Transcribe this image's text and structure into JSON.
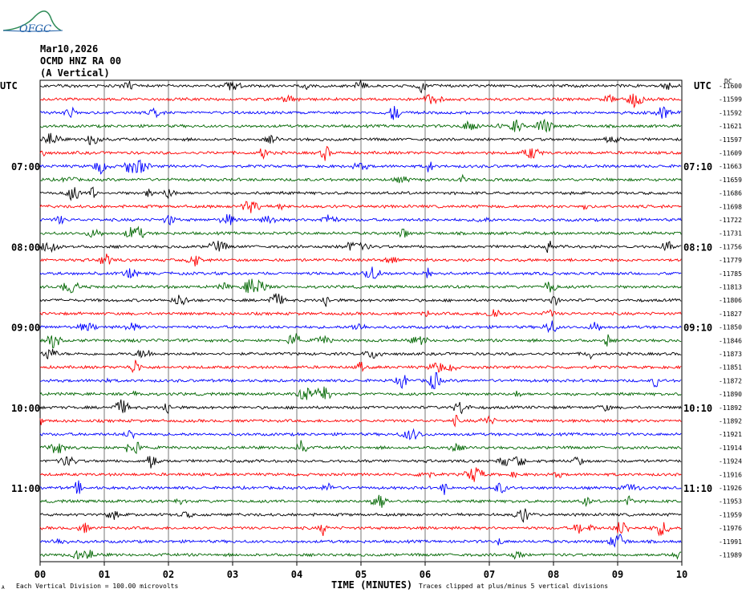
{
  "logo_text": "OFGC",
  "header": {
    "date": "Mar10,2026",
    "station": "OCMD HNZ RA 00",
    "component": "(A Vertical)"
  },
  "utc_label": "UTC",
  "dc_label": "DC",
  "footer": {
    "left_mark": "A",
    "scale_note": "Each Vertical Division =  100.00 microvolts",
    "xlabel": "TIME (MINUTES)",
    "clip_note": "Traces clipped at plus/minus 5 vertical divisions"
  },
  "chart_data": {
    "type": "line",
    "title": "",
    "xlabel": "TIME (MINUTES)",
    "ylabel": "",
    "xlim": [
      0,
      10
    ],
    "x_ticks": [
      "00",
      "01",
      "02",
      "03",
      "04",
      "05",
      "06",
      "07",
      "08",
      "09",
      "10"
    ],
    "trace_colors": [
      "#000000",
      "#ff0000",
      "#0000ff",
      "#006600"
    ],
    "left_time_labels": [
      {
        "row": 6,
        "label": "07:00"
      },
      {
        "row": 12,
        "label": "08:00"
      },
      {
        "row": 18,
        "label": "09:00"
      },
      {
        "row": 24,
        "label": "10:00"
      },
      {
        "row": 30,
        "label": "11:00"
      }
    ],
    "right_time_labels": [
      {
        "row": 6,
        "label": "07:10"
      },
      {
        "row": 12,
        "label": "08:10"
      },
      {
        "row": 18,
        "label": "09:10"
      },
      {
        "row": 24,
        "label": "10:10"
      },
      {
        "row": 30,
        "label": "11:10"
      }
    ],
    "dc_offsets": [
      "-11600",
      "-11599",
      "-11592",
      "-11621",
      "-11597",
      "-11609",
      "-11663",
      "-11659",
      "-11686",
      "-11698",
      "-11722",
      "-11731",
      "-11756",
      "-11779",
      "-11785",
      "-11813",
      "-11806",
      "-11827",
      "-11850",
      "-11846",
      "-11873",
      "-11851",
      "-11872",
      "-11890",
      "-11892",
      "-11892",
      "-11921",
      "-11914",
      "-11924",
      "-11916",
      "-11926",
      "-11953",
      "-11959",
      "-11976",
      "-11991",
      "-11989"
    ],
    "grid": true
  }
}
